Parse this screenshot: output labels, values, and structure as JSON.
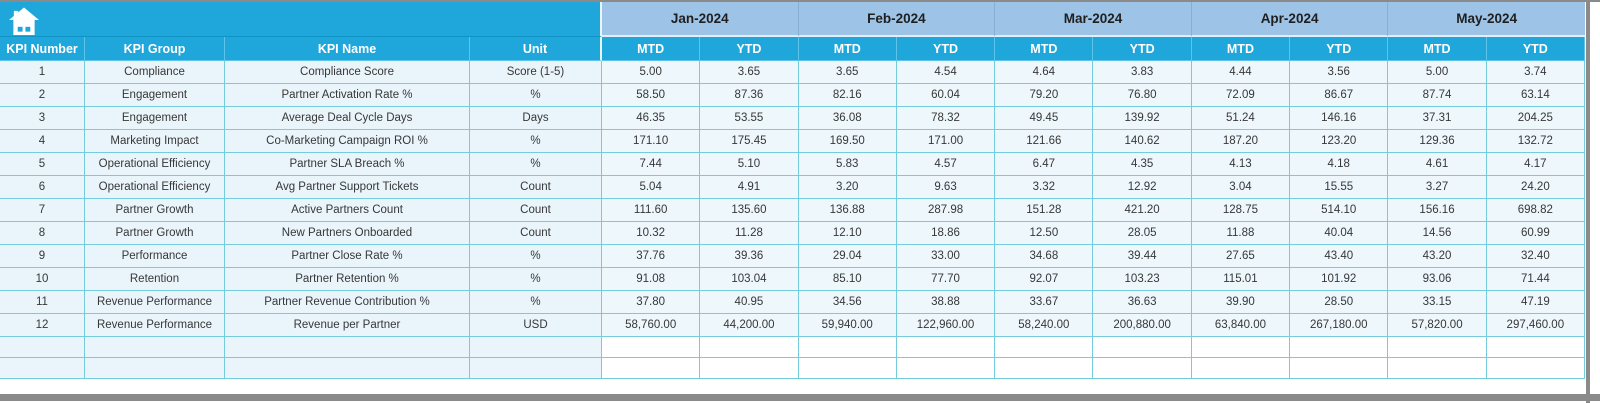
{
  "app": {
    "kind": "kpi-spreadsheet",
    "home_icon": "home-icon"
  },
  "colors": {
    "header_cyan": "#1FA6DA",
    "month_header_blue": "#9DC3E6",
    "row_light_blue": "#EAF5FB",
    "grid_turquoise": "#74CCDC",
    "frame_gray": "#8A8A8A",
    "header_text_white": "#FFFFFF",
    "month_text_dark": "#1F1F1F",
    "cell_text": "#373737"
  },
  "table": {
    "left_headers": [
      "KPI Number",
      "KPI Group",
      "KPI Name",
      "Unit"
    ],
    "months": [
      "Jan-2024",
      "Feb-2024",
      "Mar-2024",
      "Apr-2024",
      "May-2024"
    ],
    "sub_headers": [
      "MTD",
      "YTD"
    ],
    "empty_row_count": 2,
    "rows": [
      {
        "number": "1",
        "group": "Compliance",
        "name": "Compliance Score",
        "unit": "Score (1-5)",
        "values": [
          "5.00",
          "3.65",
          "3.65",
          "4.54",
          "4.64",
          "3.83",
          "4.44",
          "3.56",
          "5.00",
          "3.74"
        ]
      },
      {
        "number": "2",
        "group": "Engagement",
        "name": "Partner Activation Rate %",
        "unit": "%",
        "values": [
          "58.50",
          "87.36",
          "82.16",
          "60.04",
          "79.20",
          "76.80",
          "72.09",
          "86.67",
          "87.74",
          "63.14"
        ]
      },
      {
        "number": "3",
        "group": "Engagement",
        "name": "Average Deal Cycle Days",
        "unit": "Days",
        "values": [
          "46.35",
          "53.55",
          "36.08",
          "78.32",
          "49.45",
          "139.92",
          "51.24",
          "146.16",
          "37.31",
          "204.25"
        ]
      },
      {
        "number": "4",
        "group": "Marketing Impact",
        "name": "Co-Marketing Campaign ROI %",
        "unit": "%",
        "values": [
          "171.10",
          "175.45",
          "169.50",
          "171.00",
          "121.66",
          "140.62",
          "187.20",
          "123.20",
          "129.36",
          "132.72"
        ]
      },
      {
        "number": "5",
        "group": "Operational Efficiency",
        "name": "Partner SLA Breach %",
        "unit": "%",
        "values": [
          "7.44",
          "5.10",
          "5.83",
          "4.57",
          "6.47",
          "4.35",
          "4.13",
          "4.18",
          "4.61",
          "4.17"
        ]
      },
      {
        "number": "6",
        "group": "Operational Efficiency",
        "name": "Avg Partner Support Tickets",
        "unit": "Count",
        "values": [
          "5.04",
          "4.91",
          "3.20",
          "9.63",
          "3.32",
          "12.92",
          "3.04",
          "15.55",
          "3.27",
          "24.20"
        ]
      },
      {
        "number": "7",
        "group": "Partner Growth",
        "name": "Active Partners Count",
        "unit": "Count",
        "values": [
          "111.60",
          "135.60",
          "136.88",
          "287.98",
          "151.28",
          "421.20",
          "128.75",
          "514.10",
          "156.16",
          "698.82"
        ]
      },
      {
        "number": "8",
        "group": "Partner Growth",
        "name": "New Partners Onboarded",
        "unit": "Count",
        "values": [
          "10.32",
          "11.28",
          "12.10",
          "18.86",
          "12.50",
          "28.05",
          "11.88",
          "40.04",
          "14.56",
          "60.99"
        ]
      },
      {
        "number": "9",
        "group": "Performance",
        "name": "Partner Close Rate %",
        "unit": "%",
        "values": [
          "37.76",
          "39.36",
          "29.04",
          "33.00",
          "34.68",
          "39.44",
          "27.65",
          "43.40",
          "43.20",
          "32.40"
        ]
      },
      {
        "number": "10",
        "group": "Retention",
        "name": "Partner Retention %",
        "unit": "%",
        "values": [
          "91.08",
          "103.04",
          "85.10",
          "77.70",
          "92.07",
          "103.23",
          "115.01",
          "101.92",
          "93.06",
          "71.44"
        ]
      },
      {
        "number": "11",
        "group": "Revenue Performance",
        "name": "Partner Revenue Contribution %",
        "unit": "%",
        "values": [
          "37.80",
          "40.95",
          "34.56",
          "38.88",
          "33.67",
          "36.63",
          "39.90",
          "28.50",
          "33.15",
          "47.19"
        ]
      },
      {
        "number": "12",
        "group": "Revenue Performance",
        "name": "Revenue per Partner",
        "unit": "USD",
        "values": [
          "58,760.00",
          "44,200.00",
          "59,940.00",
          "122,960.00",
          "58,240.00",
          "200,880.00",
          "63,840.00",
          "267,180.00",
          "57,820.00",
          "297,460.00"
        ]
      }
    ]
  }
}
